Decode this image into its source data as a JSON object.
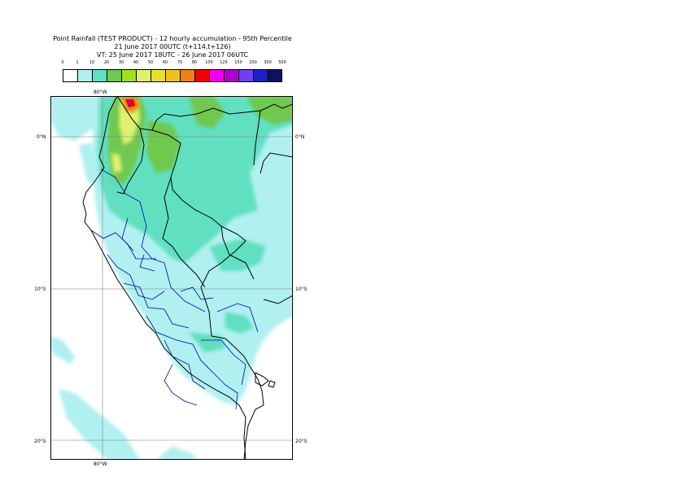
{
  "title": {
    "line1": "Point Rainfall (TEST PRODUCT) - 12 hourly accumulation - 95th Percentile",
    "line2": "21 June 2017 00UTC (t+114,t+126)",
    "line3": "VT: 25 June 2017 18UTC - 26 June 2017 06UTC"
  },
  "legend": {
    "thresholds": [
      "0",
      "1",
      "10",
      "20",
      "30",
      "40",
      "50",
      "60",
      "70",
      "80",
      "100",
      "125",
      "150",
      "200",
      "300",
      "500"
    ],
    "colors": [
      "#ffffff",
      "#b0f0f0",
      "#60e0c0",
      "#70c850",
      "#a0e020",
      "#e0f070",
      "#e8e030",
      "#f0c020",
      "#f08010",
      "#f00000",
      "#f000f0",
      "#b000d0",
      "#7040f0",
      "#2020c0",
      "#101060"
    ]
  },
  "map": {
    "lon_labels": {
      "top": "80°W",
      "bottom": "80°W"
    },
    "lat_labels": {
      "left": [
        "0°N",
        "10°S",
        "20°S"
      ],
      "right": [
        "0°N",
        "10°S",
        "20°S"
      ]
    },
    "colors": {
      "land_border": "#000000",
      "admin_border": "#0000b0",
      "grid": "#808080"
    }
  }
}
